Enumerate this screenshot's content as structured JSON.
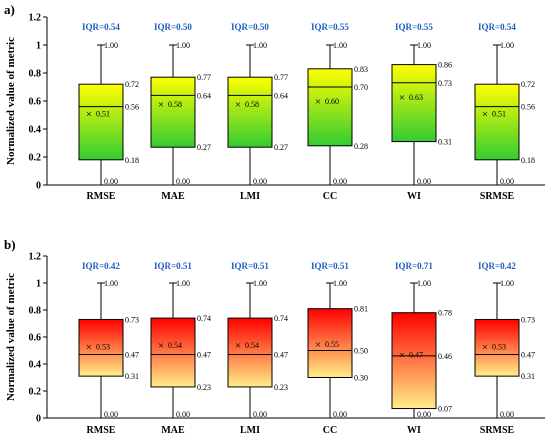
{
  "chart_data": [
    {
      "type": "box",
      "panel": "a)",
      "ylabel": "Normalized value of metric",
      "ylim": [
        0,
        1.2
      ],
      "yticks": [
        "0",
        "0.2",
        "0.4",
        "0.6",
        "0.8",
        "1",
        "1.2"
      ],
      "categories": [
        "RMSE",
        "MAE",
        "LMI",
        "CC",
        "WI",
        "SRMSE"
      ],
      "colors": {
        "top": "#ffff00",
        "bottom": "#33cc33"
      },
      "boxes": [
        {
          "iqr": "IQR=0.54",
          "min": 0.0,
          "q1": 0.18,
          "median": 0.56,
          "q3": 0.72,
          "max": 1.0,
          "mean": 0.51,
          "labels": {
            "min": "0.00",
            "q1": "0.18",
            "median": "0.56",
            "q3": "0.72",
            "max": "1.00",
            "mean": "0.51"
          }
        },
        {
          "iqr": "IQR=0.50",
          "min": 0.0,
          "q1": 0.27,
          "median": 0.64,
          "q3": 0.77,
          "max": 1.0,
          "mean": 0.58,
          "labels": {
            "min": "0.00",
            "q1": "0.27",
            "median": "0.64",
            "q3": "0.77",
            "max": "1.00",
            "mean": "0.58"
          }
        },
        {
          "iqr": "IQR=0.50",
          "min": 0.0,
          "q1": 0.27,
          "median": 0.64,
          "q3": 0.77,
          "max": 1.0,
          "mean": 0.58,
          "labels": {
            "min": "0.00",
            "q1": "0.27",
            "median": "0.64",
            "q3": "0.77",
            "max": "1.00",
            "mean": "0.58"
          }
        },
        {
          "iqr": "IQR=0.55",
          "min": 0.0,
          "q1": 0.28,
          "median": 0.7,
          "q3": 0.83,
          "max": 1.0,
          "mean": 0.6,
          "labels": {
            "min": "0.00",
            "q1": "0.28",
            "median": "0.70",
            "q3": "0.83",
            "max": "1.00",
            "mean": "0.60"
          }
        },
        {
          "iqr": "IQR=0.55",
          "min": 0.0,
          "q1": 0.31,
          "median": 0.73,
          "q3": 0.86,
          "max": 1.0,
          "mean": 0.63,
          "labels": {
            "min": "0.00",
            "q1": "0.31",
            "median": "0.73",
            "q3": "0.86",
            "max": "1.00",
            "mean": "0.63"
          }
        },
        {
          "iqr": "IQR=0.54",
          "min": 0.0,
          "q1": 0.18,
          "median": 0.56,
          "q3": 0.72,
          "max": 1.0,
          "mean": 0.51,
          "labels": {
            "min": "0.00",
            "q1": "0.18",
            "median": "0.56",
            "q3": "0.72",
            "max": "1.00",
            "mean": "0.51"
          }
        }
      ]
    },
    {
      "type": "box",
      "panel": "b)",
      "ylabel": "Normalized value of metric",
      "ylim": [
        0,
        1.2
      ],
      "yticks": [
        "0",
        "0.2",
        "0.4",
        "0.6",
        "0.8",
        "1",
        "1.2"
      ],
      "categories": [
        "RMSE",
        "MAE",
        "LMI",
        "CC",
        "WI",
        "SRMSE"
      ],
      "colors": {
        "top": "#ff0000",
        "bottom": "#ffee88"
      },
      "boxes": [
        {
          "iqr": "IQR=0.42",
          "min": 0.0,
          "q1": 0.31,
          "median": 0.47,
          "q3": 0.73,
          "max": 1.0,
          "mean": 0.53,
          "labels": {
            "min": "0.00",
            "q1": "0.31",
            "median": "0.47",
            "q3": "0.73",
            "max": "1.00",
            "mean": "0.53"
          }
        },
        {
          "iqr": "IQR=0.51",
          "min": 0.0,
          "q1": 0.23,
          "median": 0.47,
          "q3": 0.74,
          "max": 1.0,
          "mean": 0.54,
          "labels": {
            "min": "0.00",
            "q1": "0.23",
            "median": "0.47",
            "q3": "0.74",
            "max": "1.00",
            "mean": "0.54"
          }
        },
        {
          "iqr": "IQR=0.51",
          "min": 0.0,
          "q1": 0.23,
          "median": 0.47,
          "q3": 0.74,
          "max": 1.0,
          "mean": 0.54,
          "labels": {
            "min": "0.00",
            "q1": "0.23",
            "median": "0.47",
            "q3": "0.74",
            "max": "1.00",
            "mean": "0.54"
          }
        },
        {
          "iqr": "IQR=0.51",
          "min": 0.0,
          "q1": 0.3,
          "median": 0.5,
          "q3": 0.81,
          "max": 1.0,
          "mean": 0.55,
          "labels": {
            "min": "0.00",
            "q1": "0.30",
            "median": "0.50",
            "q3": "0.81",
            "max": "1.00",
            "mean": "0.55"
          }
        },
        {
          "iqr": "IQR=0.71",
          "min": 0.0,
          "q1": 0.07,
          "median": 0.46,
          "q3": 0.78,
          "max": 1.0,
          "mean": 0.47,
          "labels": {
            "min": "0.00",
            "q1": "0.07",
            "median": "0.46",
            "q3": "0.78",
            "max": "1.00",
            "mean": "0.47"
          }
        },
        {
          "iqr": "IQR=0.42",
          "min": 0.0,
          "q1": 0.31,
          "median": 0.47,
          "q3": 0.73,
          "max": 1.0,
          "mean": 0.53,
          "labels": {
            "min": "0.00",
            "q1": "0.31",
            "median": "0.47",
            "q3": "0.73",
            "max": "1.00",
            "mean": "0.53"
          }
        }
      ]
    }
  ]
}
